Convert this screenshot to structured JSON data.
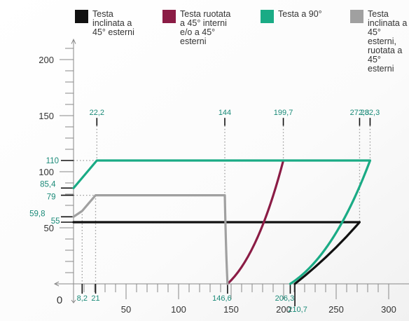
{
  "legend": [
    {
      "label": "Testa\ninclinata a\n45° esterni",
      "color": "#111111"
    },
    {
      "label": "Testa ruotata\na 45° interni\ne/o a 45°\nesterni",
      "color": "#8b1c45"
    },
    {
      "label": "Testa a 90°",
      "color": "#1aab85"
    },
    {
      "label": "Testa\ninclinata a\n45° esterni,\nruotata a 45°\nesterni",
      "color": "#a0a0a0"
    }
  ],
  "chart_data": {
    "type": "line",
    "title": "",
    "xlabel": "",
    "ylabel": "",
    "xlim": [
      -25,
      305
    ],
    "ylim": [
      0,
      220
    ],
    "x_ticks": [
      0,
      50,
      100,
      150,
      200,
      250,
      300
    ],
    "x_tick_labels": [
      "",
      "50",
      "100",
      "150",
      "200",
      "250",
      "300"
    ],
    "y_ticks": [
      0,
      50,
      100,
      150,
      200
    ],
    "y_tick_labels": [
      "",
      "50",
      "100",
      "150",
      "200"
    ],
    "origin_label": "0",
    "top_markers": [
      {
        "x": 22.2,
        "label": "22,2"
      },
      {
        "x": 144,
        "label": "144"
      },
      {
        "x": 199.7,
        "label": "199,7"
      },
      {
        "x": 272.3,
        "label": "272,3"
      },
      {
        "x": 282.3,
        "label": "282,3"
      }
    ],
    "bottom_markers": [
      {
        "x": 8.2,
        "label": "8,2"
      },
      {
        "x": 21,
        "label": "21"
      },
      {
        "x": 146.6,
        "label": "146,6"
      },
      {
        "x": 206.3,
        "label": "206,3"
      },
      {
        "x": 210.7,
        "label": "210,7"
      }
    ],
    "y_markers": [
      {
        "y": 110,
        "label": "110"
      },
      {
        "y": 85.4,
        "label": "85,4"
      },
      {
        "y": 79,
        "label": "79"
      },
      {
        "y": 59.8,
        "label": "59,8"
      },
      {
        "y": 55,
        "label": "55"
      }
    ],
    "series": [
      {
        "name": "Testa inclinata a 45° esterni",
        "color": "#111111",
        "segments": [
          {
            "points": [
              [
                0,
                55
              ],
              [
                272.3,
                55
              ],
              [
                210.7,
                0
              ]
            ],
            "curve": true
          }
        ]
      },
      {
        "name": "Testa ruotata a 45° interni e/o a 45° esterni",
        "color": "#8b1c45",
        "segments": [
          {
            "points": [
              [
                199.7,
                110
              ],
              [
                146.6,
                0
              ]
            ],
            "curve": true
          }
        ]
      },
      {
        "name": "Testa a 90°",
        "color": "#1aab85",
        "segments": [
          {
            "points": [
              [
                0,
                85.4
              ],
              [
                22.2,
                110
              ],
              [
                282.3,
                110
              ],
              [
                206.3,
                0
              ]
            ],
            "curve": true
          }
        ]
      },
      {
        "name": "Testa inclinata a 45° esterni, ruotata a 45° esterni",
        "color": "#a0a0a0",
        "segments": [
          {
            "points": [
              [
                0,
                59.8
              ],
              [
                8.2,
                65
              ],
              [
                21,
                79
              ],
              [
                144,
                79
              ],
              [
                146.6,
                0
              ]
            ],
            "curve": true
          }
        ]
      }
    ]
  }
}
